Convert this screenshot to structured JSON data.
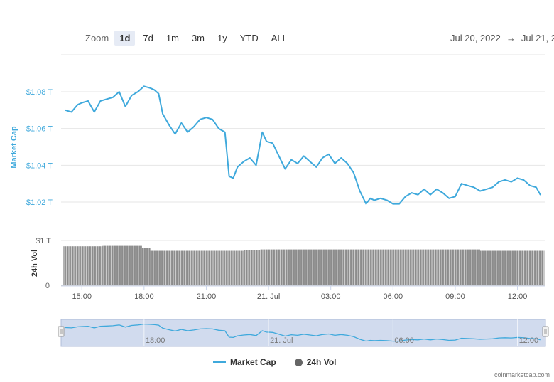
{
  "zoom": {
    "label": "Zoom",
    "buttons": [
      "1d",
      "7d",
      "1m",
      "3m",
      "1y",
      "YTD",
      "ALL"
    ],
    "active": "1d"
  },
  "range": {
    "from": "Jul 20, 2022",
    "arrow": "→",
    "to": "Jul 21, 2"
  },
  "legend": {
    "market_cap": "Market Cap",
    "vol": "24h Vol"
  },
  "credit": "coinmarketcap.com",
  "colors": {
    "line": "#3fa9dc",
    "bars": "#666666",
    "navigator": "#c5d2ea"
  },
  "chart_data": {
    "type": "line",
    "ylabel": "Market Cap",
    "ylabel2": "24h Vol",
    "y_ticks": [
      "$1.08 T",
      "$1.06 T",
      "$1.04 T",
      "$1.02 T"
    ],
    "y_tick_values": [
      1.08,
      1.06,
      1.04,
      1.02
    ],
    "ylim": [
      1.0,
      1.1
    ],
    "vol_ticks": [
      "$1 T",
      "0"
    ],
    "x_ticks": [
      "15:00",
      "18:00",
      "21:00",
      "21. Jul",
      "03:00",
      "06:00",
      "09:00",
      "12:00"
    ],
    "x_tick_hours": [
      15,
      18,
      21,
      24,
      27,
      30,
      33,
      36
    ],
    "navigator_ticks": [
      "18:00",
      "21. Jul",
      "06:00",
      "12:00"
    ],
    "navigator_tick_hours": [
      18,
      24,
      30,
      36
    ],
    "x_hours": [
      14.2,
      14.5,
      14.8,
      15.0,
      15.3,
      15.6,
      15.9,
      16.2,
      16.5,
      16.8,
      17.1,
      17.4,
      17.7,
      18.0,
      18.3,
      18.5,
      18.7,
      18.9,
      19.2,
      19.5,
      19.8,
      20.1,
      20.4,
      20.7,
      21.0,
      21.3,
      21.6,
      21.9,
      22.1,
      22.3,
      22.5,
      22.8,
      23.1,
      23.4,
      23.7,
      23.9,
      24.2,
      24.5,
      24.8,
      25.1,
      25.4,
      25.7,
      26.0,
      26.3,
      26.6,
      26.9,
      27.2,
      27.5,
      27.8,
      28.1,
      28.4,
      28.7,
      28.9,
      29.1,
      29.4,
      29.7,
      30.0,
      30.3,
      30.6,
      30.9,
      31.2,
      31.5,
      31.8,
      32.1,
      32.4,
      32.7,
      33.0,
      33.3,
      33.6,
      33.9,
      34.2,
      34.5,
      34.8,
      35.1,
      35.4,
      35.7,
      36.0,
      36.3,
      36.6,
      36.9,
      37.1
    ],
    "values": [
      1.07,
      1.069,
      1.073,
      1.074,
      1.075,
      1.069,
      1.075,
      1.076,
      1.077,
      1.08,
      1.072,
      1.078,
      1.08,
      1.083,
      1.082,
      1.081,
      1.079,
      1.068,
      1.062,
      1.057,
      1.063,
      1.058,
      1.061,
      1.065,
      1.066,
      1.065,
      1.06,
      1.058,
      1.034,
      1.033,
      1.039,
      1.042,
      1.044,
      1.04,
      1.058,
      1.053,
      1.052,
      1.045,
      1.038,
      1.043,
      1.041,
      1.045,
      1.042,
      1.039,
      1.044,
      1.046,
      1.041,
      1.044,
      1.041,
      1.036,
      1.026,
      1.019,
      1.022,
      1.021,
      1.022,
      1.021,
      1.019,
      1.019,
      1.023,
      1.025,
      1.024,
      1.027,
      1.024,
      1.027,
      1.025,
      1.022,
      1.023,
      1.03,
      1.029,
      1.028,
      1.026,
      1.027,
      1.028,
      1.031,
      1.032,
      1.031,
      1.033,
      1.032,
      1.029,
      1.028,
      1.024
    ],
    "vol_segments": [
      {
        "from": 14.1,
        "to": 16.0,
        "value": 0.87
      },
      {
        "from": 16.0,
        "to": 17.9,
        "value": 0.88
      },
      {
        "from": 17.9,
        "to": 18.3,
        "value": 0.84
      },
      {
        "from": 18.3,
        "to": 22.8,
        "value": 0.77
      },
      {
        "from": 22.8,
        "to": 23.6,
        "value": 0.79
      },
      {
        "from": 23.6,
        "to": 31.0,
        "value": 0.8
      },
      {
        "from": 31.0,
        "to": 34.2,
        "value": 0.8
      },
      {
        "from": 34.2,
        "to": 37.3,
        "value": 0.77
      }
    ],
    "vol_max": 1.0
  }
}
